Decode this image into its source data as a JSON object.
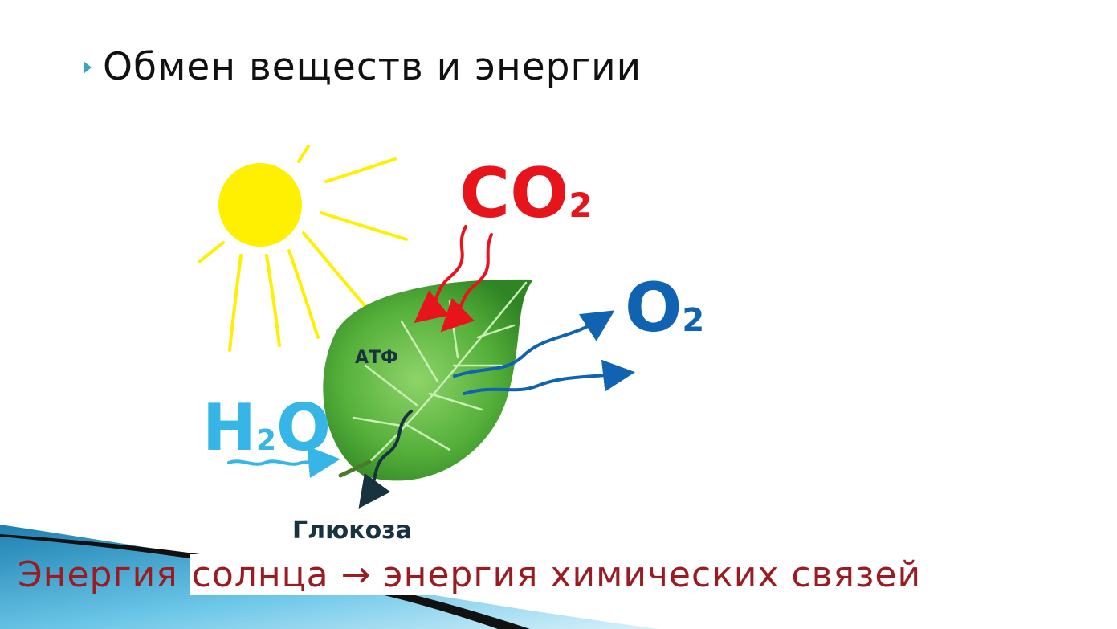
{
  "slide": {
    "title": "Обмен веществ и энергии",
    "caption_part1": "Энергия",
    "caption_part2": "солнца → энергия химических связей"
  },
  "diagram": {
    "co2": {
      "main": "CO",
      "sub": "2"
    },
    "o2": {
      "main": "O",
      "sub": "2"
    },
    "h2o": {
      "main1": "H",
      "sub": "2",
      "main2": "O"
    },
    "atp": "АТФ",
    "glucose": "Глюкоза"
  },
  "colors": {
    "co2": "#e8141c",
    "o2": "#0f63b0",
    "h2o": "#35b6e6",
    "glucose": "#18323f",
    "sun": "#ffef00",
    "caption": "#9b1b22",
    "bullet": "#3ba6c4"
  }
}
